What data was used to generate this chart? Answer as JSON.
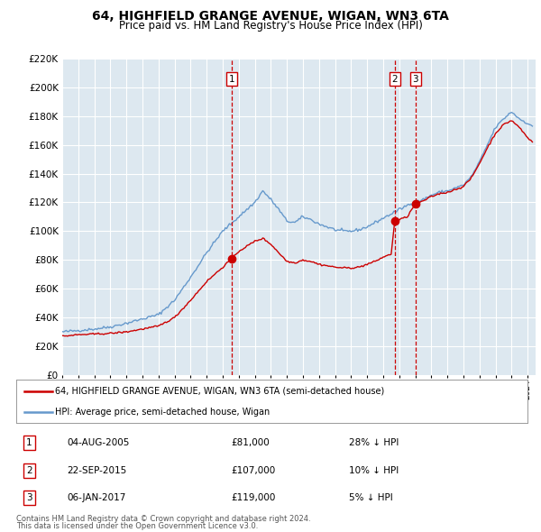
{
  "title": "64, HIGHFIELD GRANGE AVENUE, WIGAN, WN3 6TA",
  "subtitle": "Price paid vs. HM Land Registry's House Price Index (HPI)",
  "legend_label_red": "64, HIGHFIELD GRANGE AVENUE, WIGAN, WN3 6TA (semi-detached house)",
  "legend_label_blue": "HPI: Average price, semi-detached house, Wigan",
  "footer_line1": "Contains HM Land Registry data © Crown copyright and database right 2024.",
  "footer_line2": "This data is licensed under the Open Government Licence v3.0.",
  "transactions": [
    {
      "num": 1,
      "date": "04-AUG-2005",
      "year": 2005.58,
      "price": 81000,
      "hpi_pct": "28% ↓ HPI"
    },
    {
      "num": 2,
      "date": "22-SEP-2015",
      "year": 2015.72,
      "price": 107000,
      "hpi_pct": "10% ↓ HPI"
    },
    {
      "num": 3,
      "date": "06-JAN-2017",
      "year": 2017.01,
      "price": 119000,
      "hpi_pct": "5% ↓ HPI"
    }
  ],
  "vline_color": "#cc0000",
  "hpi_color": "#6699cc",
  "price_color": "#cc0000",
  "dot_color": "#cc0000",
  "bg_chart": "#dde8f0",
  "grid_color": "#ffffff",
  "ylim": [
    0,
    220000
  ],
  "ytick_step": 20000,
  "xmin": 1995.0,
  "xmax": 2024.5,
  "title_fontsize": 10,
  "subtitle_fontsize": 8.5
}
